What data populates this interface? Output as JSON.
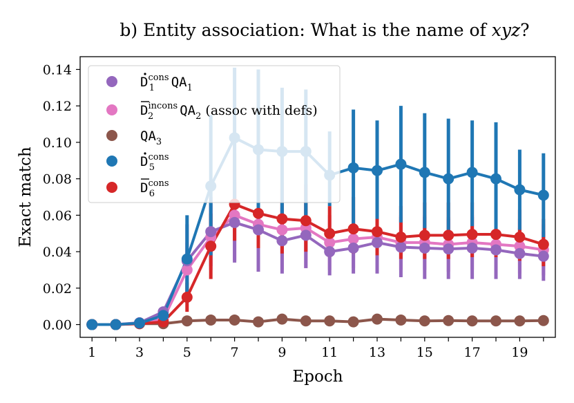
{
  "chart_data": {
    "type": "line",
    "title": "b) Entity association: What is the name of xyz?",
    "title_prefix": "b) Entity association: What is the name of ",
    "title_var": "xyz",
    "title_suffix": "?",
    "xlabel": "Epoch",
    "ylabel": "Exact match",
    "xlim": [
      0.5,
      20.5
    ],
    "ylim": [
      -0.007,
      0.147
    ],
    "xticks": [
      1,
      3,
      5,
      7,
      9,
      11,
      13,
      15,
      17,
      19
    ],
    "xticks_minor": [
      2,
      4,
      6,
      8,
      10,
      12,
      14,
      16,
      18,
      20
    ],
    "yticks": [
      0.0,
      0.02,
      0.04,
      0.06,
      0.08,
      0.1,
      0.12,
      0.14
    ],
    "ytick_labels": [
      "0.00",
      "0.02",
      "0.04",
      "0.06",
      "0.08",
      "0.10",
      "0.12",
      "0.14"
    ],
    "legend_position": "top-left",
    "x": [
      1,
      2,
      3,
      4,
      5,
      6,
      7,
      8,
      9,
      10,
      11,
      12,
      13,
      14,
      15,
      16,
      17,
      18,
      19,
      20
    ],
    "series": [
      {
        "name": "D1 cons QA1",
        "color": "#9467bd",
        "legend": {
          "base": "D",
          "mark": "dot",
          "sub": "1",
          "sup": "cons",
          "suffix": "QA",
          "suffix_sub": "1",
          "note": ""
        },
        "values": [
          0.0,
          0.0,
          0.001,
          0.007,
          0.035,
          0.051,
          0.056,
          0.052,
          0.046,
          0.049,
          0.04,
          0.042,
          0.045,
          0.0425,
          0.042,
          0.0415,
          0.042,
          0.041,
          0.039,
          0.0375
        ],
        "err_low": [
          0.0,
          0.0,
          0.0005,
          0.005,
          0.015,
          0.032,
          0.034,
          0.029,
          0.028,
          0.031,
          0.027,
          0.028,
          0.028,
          0.026,
          0.025,
          0.025,
          0.025,
          0.025,
          0.025,
          0.024
        ],
        "err_high": [
          0.0,
          0.0,
          0.0015,
          0.009,
          0.055,
          0.07,
          0.078,
          0.075,
          0.064,
          0.067,
          0.052,
          0.056,
          0.06,
          0.059,
          0.059,
          0.058,
          0.059,
          0.057,
          0.053,
          0.051
        ]
      },
      {
        "name": "D2 incons QA2 (assoc with defs)",
        "color": "#e377c2",
        "legend": {
          "base": "D",
          "mark": "bar",
          "sub": "2",
          "sup": "incons",
          "suffix": "QA",
          "suffix_sub": "2",
          "note": " (assoc with defs)"
        },
        "values": [
          0.0,
          0.0,
          0.0008,
          0.003,
          0.03,
          0.048,
          0.06,
          0.055,
          0.052,
          0.053,
          0.045,
          0.047,
          0.048,
          0.045,
          0.045,
          0.044,
          0.045,
          0.044,
          0.043,
          0.041
        ],
        "err_low": [
          0.0,
          0.0,
          0.0004,
          0.002,
          0.015,
          0.03,
          0.035,
          0.032,
          0.03,
          0.031,
          0.03,
          0.031,
          0.031,
          0.03,
          0.03,
          0.029,
          0.03,
          0.029,
          0.028,
          0.027
        ],
        "err_high": [
          0.0,
          0.0,
          0.0012,
          0.005,
          0.045,
          0.066,
          0.085,
          0.078,
          0.074,
          0.075,
          0.06,
          0.063,
          0.065,
          0.06,
          0.06,
          0.059,
          0.06,
          0.059,
          0.058,
          0.055
        ]
      },
      {
        "name": "QA3",
        "color": "#8c564b",
        "legend": {
          "base": "",
          "mark": "",
          "sub": "",
          "sup": "",
          "suffix": "QA",
          "suffix_sub": "3",
          "note": ""
        },
        "values": [
          0.0,
          0.0,
          0.0005,
          0.0005,
          0.002,
          0.0025,
          0.0025,
          0.0015,
          0.003,
          0.002,
          0.002,
          0.0015,
          0.003,
          0.0025,
          0.002,
          0.0022,
          0.002,
          0.002,
          0.002,
          0.0022
        ],
        "err_low": [
          0.0,
          0.0,
          0.0,
          0.0,
          0.001,
          0.0015,
          0.0015,
          0.0005,
          0.002,
          0.001,
          0.001,
          0.0005,
          0.002,
          0.0015,
          0.001,
          0.0012,
          0.001,
          0.001,
          0.001,
          0.0012
        ],
        "err_high": [
          0.0,
          0.0,
          0.001,
          0.001,
          0.003,
          0.0035,
          0.0035,
          0.0025,
          0.004,
          0.003,
          0.003,
          0.0025,
          0.004,
          0.0035,
          0.003,
          0.0032,
          0.003,
          0.003,
          0.003,
          0.0032
        ]
      },
      {
        "name": "D5 cons",
        "color": "#1f77b4",
        "legend": {
          "base": "D",
          "mark": "dot",
          "sub": "5",
          "sup": "cons",
          "suffix": "",
          "suffix_sub": "",
          "note": ""
        },
        "values": [
          0.0,
          0.0,
          0.0008,
          0.005,
          0.036,
          0.076,
          0.1025,
          0.096,
          0.095,
          0.095,
          0.082,
          0.086,
          0.0845,
          0.088,
          0.0835,
          0.08,
          0.0835,
          0.08,
          0.074,
          0.071
        ],
        "err_low": [
          0.0,
          0.0,
          0.0004,
          0.003,
          0.012,
          0.038,
          0.065,
          0.053,
          0.059,
          0.06,
          0.065,
          0.054,
          0.058,
          0.056,
          0.053,
          0.048,
          0.054,
          0.05,
          0.052,
          0.048
        ],
        "err_high": [
          0.0,
          0.0,
          0.0012,
          0.007,
          0.06,
          0.115,
          0.141,
          0.14,
          0.13,
          0.129,
          0.106,
          0.118,
          0.112,
          0.12,
          0.116,
          0.113,
          0.112,
          0.111,
          0.096,
          0.094
        ]
      },
      {
        "name": "D6 cons",
        "color": "#d62728",
        "legend": {
          "base": "D",
          "mark": "bar",
          "sub": "6",
          "sup": "cons",
          "suffix": "",
          "suffix_sub": "",
          "note": ""
        },
        "values": [
          0.0,
          0.0,
          0.0005,
          0.0015,
          0.015,
          0.043,
          0.066,
          0.061,
          0.058,
          0.057,
          0.05,
          0.0525,
          0.051,
          0.048,
          0.049,
          0.049,
          0.0495,
          0.0495,
          0.048,
          0.044
        ],
        "err_low": [
          0.0,
          0.0,
          0.0002,
          0.0005,
          0.007,
          0.025,
          0.046,
          0.042,
          0.039,
          0.04,
          0.037,
          0.039,
          0.038,
          0.036,
          0.036,
          0.036,
          0.037,
          0.037,
          0.035,
          0.032
        ],
        "err_high": [
          0.0,
          0.0,
          0.0008,
          0.0025,
          0.023,
          0.061,
          0.094,
          0.09,
          0.078,
          0.077,
          0.065,
          0.07,
          0.068,
          0.065,
          0.067,
          0.067,
          0.067,
          0.068,
          0.063,
          0.058
        ]
      }
    ]
  }
}
